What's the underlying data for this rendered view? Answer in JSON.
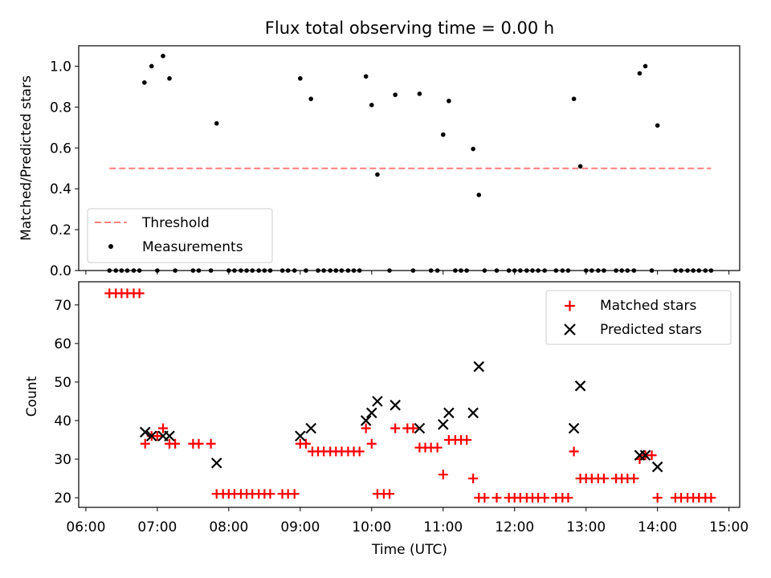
{
  "title": "Flux total observing time = 0.00 h",
  "chart_data": [
    {
      "type": "scatter",
      "ylabel": "Matched/Predicted stars",
      "xlim_hours": [
        5.9,
        15.15
      ],
      "ylim": [
        0,
        1.1
      ],
      "yticks": [
        0.0,
        0.2,
        0.4,
        0.6,
        0.8,
        1.0
      ],
      "ytick_labels": [
        "0.0",
        "0.2",
        "0.4",
        "0.6",
        "0.8",
        "1.0"
      ],
      "legend_position": "lower-left",
      "legend": [
        {
          "label": "Threshold"
        },
        {
          "label": "Measurements"
        }
      ],
      "threshold": {
        "name": "Threshold",
        "value": 0.5,
        "x_range": [
          6.33,
          14.75
        ],
        "color": "#ff7f7f"
      },
      "series": [
        {
          "name": "Measurements",
          "color": "#000000",
          "points": [
            [
              6.82,
              0.92
            ],
            [
              6.92,
              1.0
            ],
            [
              7.08,
              1.05
            ],
            [
              7.17,
              0.94
            ],
            [
              7.83,
              0.72
            ],
            [
              9.0,
              0.94
            ],
            [
              9.15,
              0.84
            ],
            [
              9.92,
              0.95
            ],
            [
              10.0,
              0.81
            ],
            [
              10.08,
              0.47
            ],
            [
              10.33,
              0.86
            ],
            [
              10.67,
              0.865
            ],
            [
              11.0,
              0.665
            ],
            [
              11.08,
              0.83
            ],
            [
              11.42,
              0.595
            ],
            [
              11.5,
              0.37
            ],
            [
              12.83,
              0.84
            ],
            [
              12.92,
              0.51
            ],
            [
              13.75,
              0.965
            ],
            [
              13.83,
              1.0
            ],
            [
              14.0,
              0.71
            ],
            [
              6.33,
              0
            ],
            [
              6.42,
              0
            ],
            [
              6.5,
              0
            ],
            [
              6.58,
              0
            ],
            [
              6.67,
              0
            ],
            [
              6.75,
              0
            ],
            [
              7.0,
              0
            ],
            [
              7.25,
              0
            ],
            [
              7.5,
              0
            ],
            [
              7.58,
              0
            ],
            [
              7.75,
              0
            ],
            [
              8.0,
              0
            ],
            [
              8.08,
              0
            ],
            [
              8.17,
              0
            ],
            [
              8.25,
              0
            ],
            [
              8.33,
              0
            ],
            [
              8.42,
              0
            ],
            [
              8.5,
              0
            ],
            [
              8.58,
              0
            ],
            [
              8.75,
              0
            ],
            [
              8.83,
              0
            ],
            [
              8.92,
              0
            ],
            [
              9.08,
              0
            ],
            [
              9.25,
              0
            ],
            [
              9.33,
              0
            ],
            [
              9.42,
              0
            ],
            [
              9.5,
              0
            ],
            [
              9.58,
              0
            ],
            [
              9.67,
              0
            ],
            [
              9.75,
              0
            ],
            [
              9.83,
              0
            ],
            [
              10.25,
              0
            ],
            [
              10.58,
              0
            ],
            [
              10.83,
              0
            ],
            [
              10.92,
              0
            ],
            [
              11.17,
              0
            ],
            [
              11.25,
              0
            ],
            [
              11.33,
              0
            ],
            [
              11.58,
              0
            ],
            [
              11.75,
              0
            ],
            [
              11.92,
              0
            ],
            [
              12.0,
              0
            ],
            [
              12.08,
              0
            ],
            [
              12.17,
              0
            ],
            [
              12.25,
              0
            ],
            [
              12.33,
              0
            ],
            [
              12.42,
              0
            ],
            [
              12.58,
              0
            ],
            [
              12.67,
              0
            ],
            [
              12.75,
              0
            ],
            [
              13.0,
              0
            ],
            [
              13.08,
              0
            ],
            [
              13.17,
              0
            ],
            [
              13.25,
              0
            ],
            [
              13.42,
              0
            ],
            [
              13.5,
              0
            ],
            [
              13.58,
              0
            ],
            [
              13.67,
              0
            ],
            [
              13.92,
              0
            ],
            [
              14.25,
              0
            ],
            [
              14.33,
              0
            ],
            [
              14.42,
              0
            ],
            [
              14.5,
              0
            ],
            [
              14.58,
              0
            ],
            [
              14.67,
              0
            ],
            [
              14.75,
              0
            ]
          ]
        }
      ]
    },
    {
      "type": "scatter",
      "xlabel": "Time (UTC)",
      "ylabel": "Count",
      "xlim_hours": [
        5.9,
        15.15
      ],
      "ylim": [
        17.5,
        76
      ],
      "xticks_hours": [
        6,
        7,
        8,
        9,
        10,
        11,
        12,
        13,
        14,
        15
      ],
      "xtick_labels": [
        "06:00",
        "07:00",
        "08:00",
        "09:00",
        "10:00",
        "11:00",
        "12:00",
        "13:00",
        "14:00",
        "15:00"
      ],
      "yticks": [
        20,
        30,
        40,
        50,
        60,
        70
      ],
      "ytick_labels": [
        "20",
        "30",
        "40",
        "50",
        "60",
        "70"
      ],
      "legend_position": "upper-right",
      "legend": [
        {
          "label": "Matched stars"
        },
        {
          "label": "Predicted stars"
        }
      ],
      "series": [
        {
          "name": "Matched stars",
          "color": "#ff0000",
          "marker": "plus",
          "points": [
            [
              6.33,
              73
            ],
            [
              6.42,
              73
            ],
            [
              6.5,
              73
            ],
            [
              6.58,
              73
            ],
            [
              6.67,
              73
            ],
            [
              6.75,
              73
            ],
            [
              6.83,
              34
            ],
            [
              6.92,
              36
            ],
            [
              7.0,
              36
            ],
            [
              7.08,
              38
            ],
            [
              7.17,
              34
            ],
            [
              7.25,
              34
            ],
            [
              7.5,
              34
            ],
            [
              7.58,
              34
            ],
            [
              7.75,
              34
            ],
            [
              7.83,
              21
            ],
            [
              7.92,
              21
            ],
            [
              8.0,
              21
            ],
            [
              8.08,
              21
            ],
            [
              8.17,
              21
            ],
            [
              8.25,
              21
            ],
            [
              8.33,
              21
            ],
            [
              8.42,
              21
            ],
            [
              8.5,
              21
            ],
            [
              8.58,
              21
            ],
            [
              8.75,
              21
            ],
            [
              8.83,
              21
            ],
            [
              8.92,
              21
            ],
            [
              9.0,
              34
            ],
            [
              9.08,
              34
            ],
            [
              9.17,
              32
            ],
            [
              9.25,
              32
            ],
            [
              9.33,
              32
            ],
            [
              9.42,
              32
            ],
            [
              9.5,
              32
            ],
            [
              9.58,
              32
            ],
            [
              9.67,
              32
            ],
            [
              9.75,
              32
            ],
            [
              9.83,
              32
            ],
            [
              9.92,
              38
            ],
            [
              10.0,
              34
            ],
            [
              10.08,
              21
            ],
            [
              10.17,
              21
            ],
            [
              10.25,
              21
            ],
            [
              10.33,
              38
            ],
            [
              10.5,
              38
            ],
            [
              10.58,
              38
            ],
            [
              10.67,
              33
            ],
            [
              10.75,
              33
            ],
            [
              10.83,
              33
            ],
            [
              10.92,
              33
            ],
            [
              11.0,
              26
            ],
            [
              11.08,
              35
            ],
            [
              11.17,
              35
            ],
            [
              11.25,
              35
            ],
            [
              11.33,
              35
            ],
            [
              11.42,
              25
            ],
            [
              11.5,
              20
            ],
            [
              11.58,
              20
            ],
            [
              11.75,
              20
            ],
            [
              11.92,
              20
            ],
            [
              12.0,
              20
            ],
            [
              12.08,
              20
            ],
            [
              12.17,
              20
            ],
            [
              12.25,
              20
            ],
            [
              12.33,
              20
            ],
            [
              12.42,
              20
            ],
            [
              12.58,
              20
            ],
            [
              12.67,
              20
            ],
            [
              12.75,
              20
            ],
            [
              12.83,
              32
            ],
            [
              12.92,
              25
            ],
            [
              13.0,
              25
            ],
            [
              13.08,
              25
            ],
            [
              13.17,
              25
            ],
            [
              13.25,
              25
            ],
            [
              13.42,
              25
            ],
            [
              13.5,
              25
            ],
            [
              13.58,
              25
            ],
            [
              13.67,
              25
            ],
            [
              13.75,
              30
            ],
            [
              13.83,
              31
            ],
            [
              13.92,
              31
            ],
            [
              14.0,
              20
            ],
            [
              14.25,
              20
            ],
            [
              14.33,
              20
            ],
            [
              14.42,
              20
            ],
            [
              14.5,
              20
            ],
            [
              14.58,
              20
            ],
            [
              14.67,
              20
            ],
            [
              14.75,
              20
            ]
          ]
        },
        {
          "name": "Predicted stars",
          "color": "#000000",
          "marker": "x",
          "points": [
            [
              6.83,
              37
            ],
            [
              6.92,
              36
            ],
            [
              7.08,
              36
            ],
            [
              7.17,
              36
            ],
            [
              7.83,
              29
            ],
            [
              9.0,
              36
            ],
            [
              9.15,
              38
            ],
            [
              9.92,
              40
            ],
            [
              10.0,
              42
            ],
            [
              10.08,
              45
            ],
            [
              10.33,
              44
            ],
            [
              10.67,
              38
            ],
            [
              11.0,
              39
            ],
            [
              11.08,
              42
            ],
            [
              11.42,
              42
            ],
            [
              11.5,
              54
            ],
            [
              12.83,
              38
            ],
            [
              12.92,
              49
            ],
            [
              13.75,
              31
            ],
            [
              13.83,
              31
            ],
            [
              14.0,
              28
            ]
          ]
        }
      ]
    }
  ]
}
